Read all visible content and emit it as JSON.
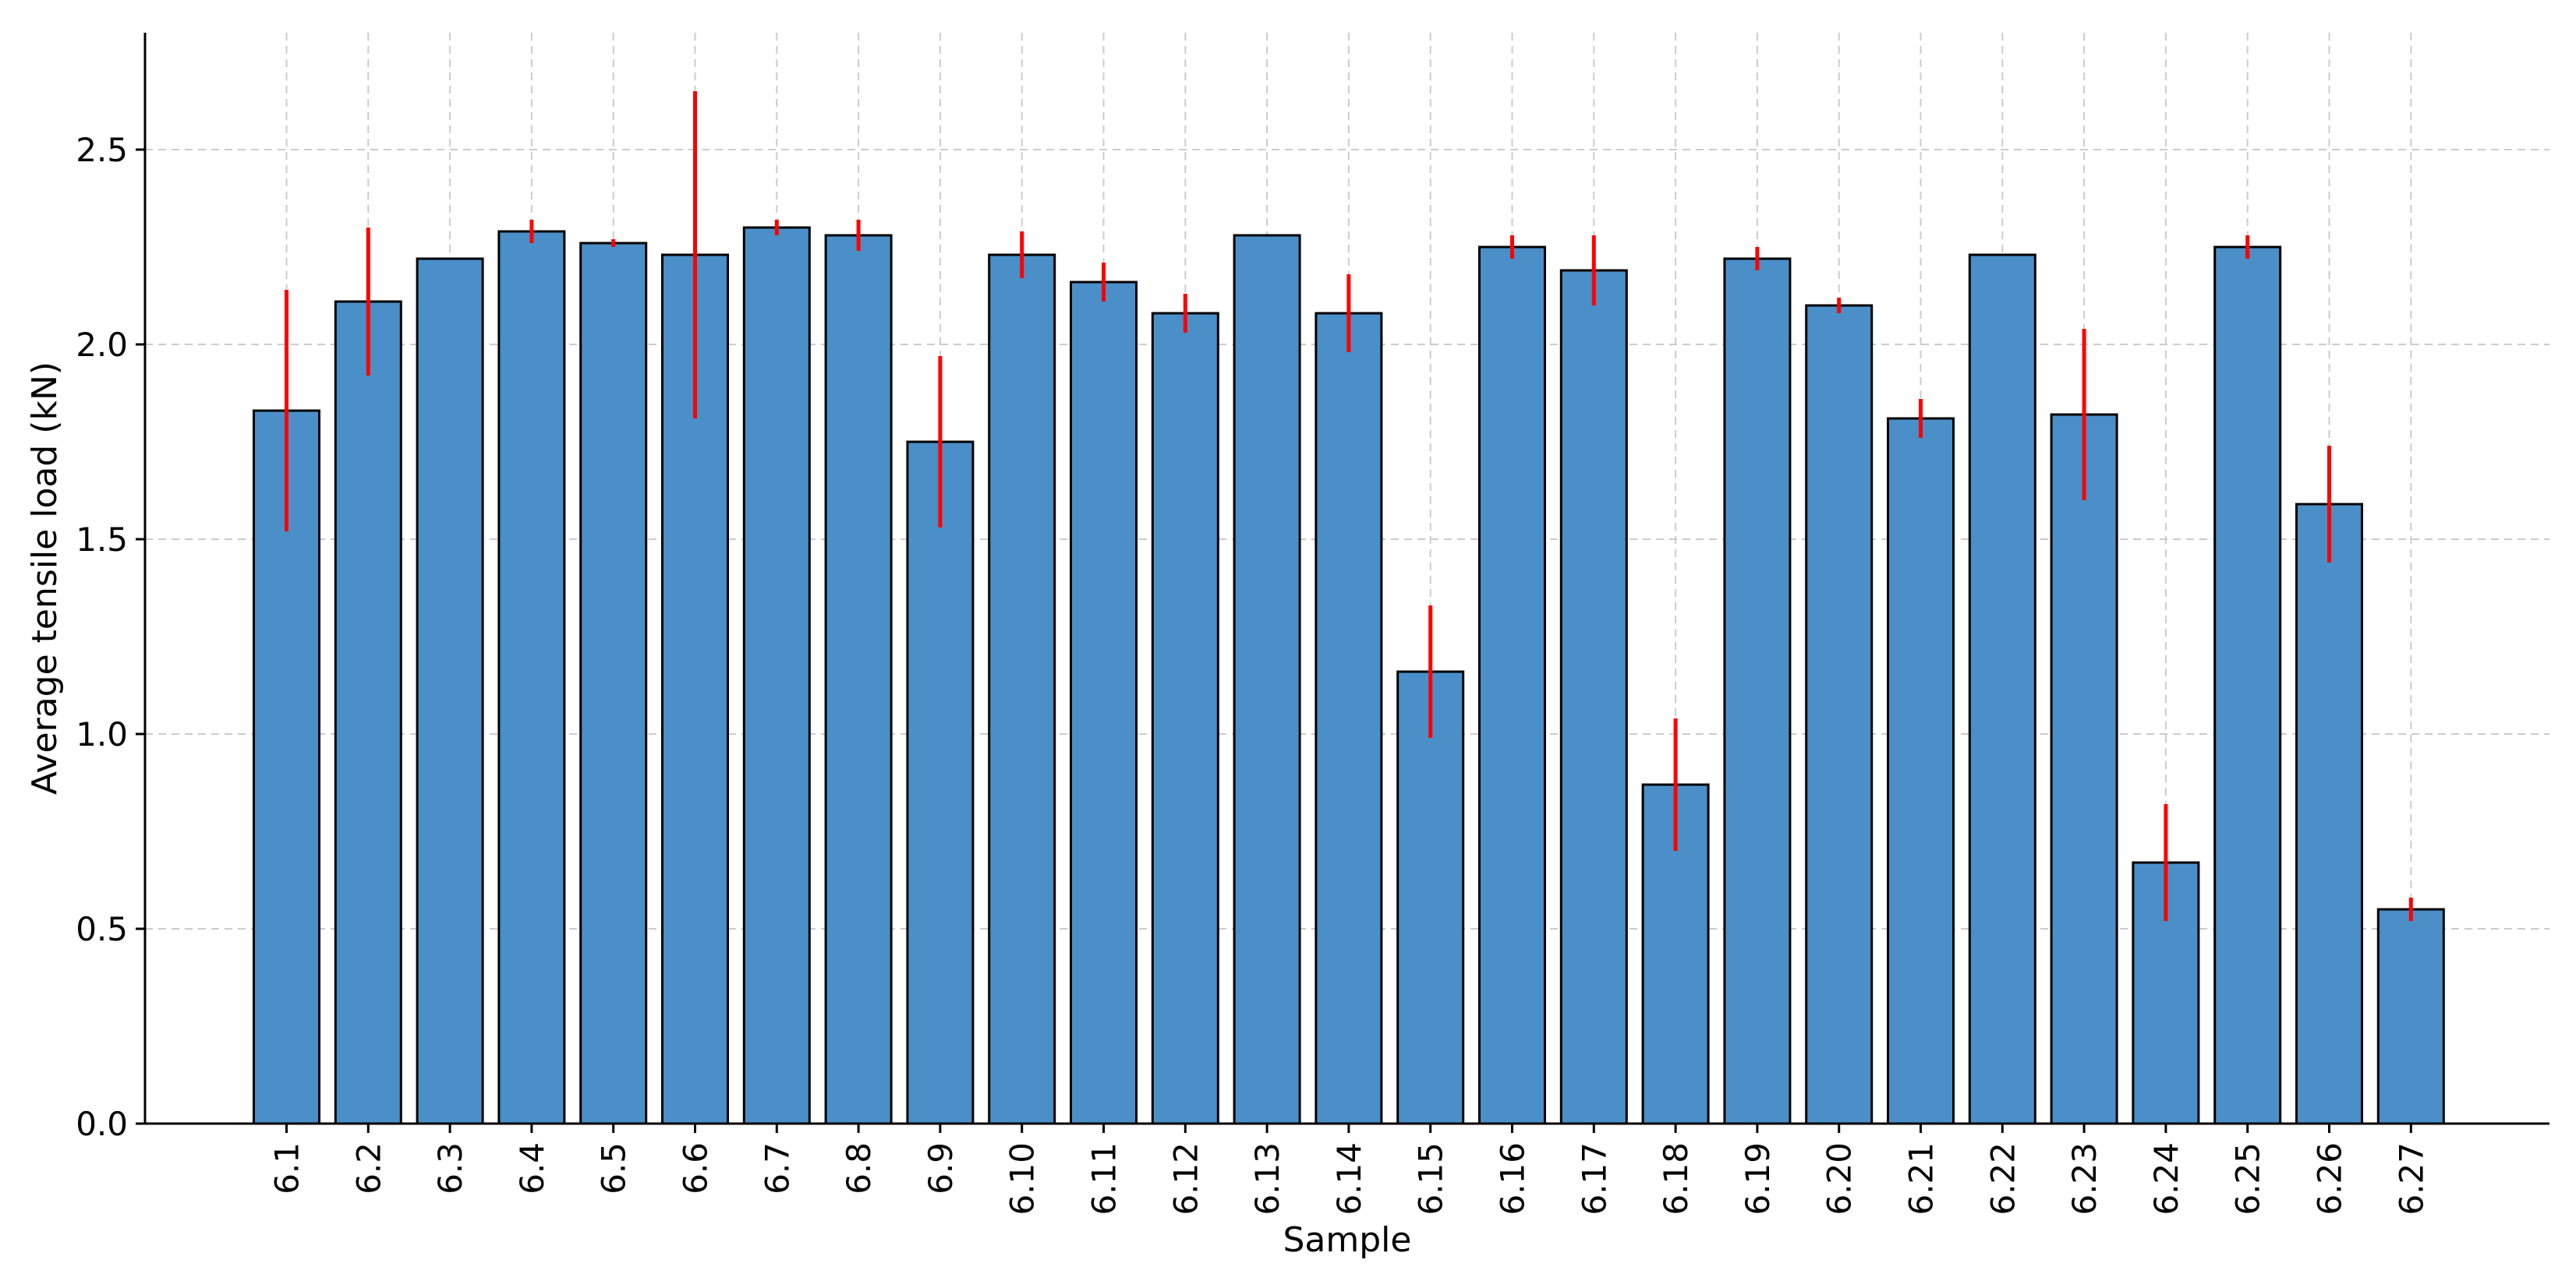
{
  "chart_data": {
    "type": "bar",
    "xlabel": "Sample",
    "ylabel": "Average tensile load (kN)",
    "ylim": [
      0,
      2.8
    ],
    "yticks": [
      "0.0",
      "0.5",
      "1.0",
      "1.5",
      "2.0",
      "2.5"
    ],
    "grid": true,
    "bar_color": "#4a8fc8",
    "bar_edge_color": "#000000",
    "error_color": "#ff0000",
    "categories": [
      "6.1",
      "6.2",
      "6.3",
      "6.4",
      "6.5",
      "6.6",
      "6.7",
      "6.8",
      "6.9",
      "6.10",
      "6.11",
      "6.12",
      "6.13",
      "6.14",
      "6.15",
      "6.16",
      "6.17",
      "6.18",
      "6.19",
      "6.20",
      "6.21",
      "6.22",
      "6.23",
      "6.24",
      "6.25",
      "6.26",
      "6.27"
    ],
    "values": [
      1.83,
      2.11,
      2.22,
      2.29,
      2.26,
      2.23,
      2.3,
      2.28,
      1.75,
      2.23,
      2.16,
      2.08,
      2.28,
      2.08,
      1.16,
      2.25,
      2.19,
      0.87,
      2.22,
      2.1,
      1.81,
      2.23,
      1.82,
      0.67,
      2.25,
      1.59,
      0.55
    ],
    "errors": [
      0.31,
      0.19,
      0.0,
      0.03,
      0.01,
      0.42,
      0.02,
      0.04,
      0.22,
      0.06,
      0.05,
      0.05,
      0.0,
      0.1,
      0.17,
      0.03,
      0.09,
      0.17,
      0.03,
      0.02,
      0.05,
      0.0,
      0.22,
      0.15,
      0.03,
      0.15,
      0.03
    ]
  }
}
